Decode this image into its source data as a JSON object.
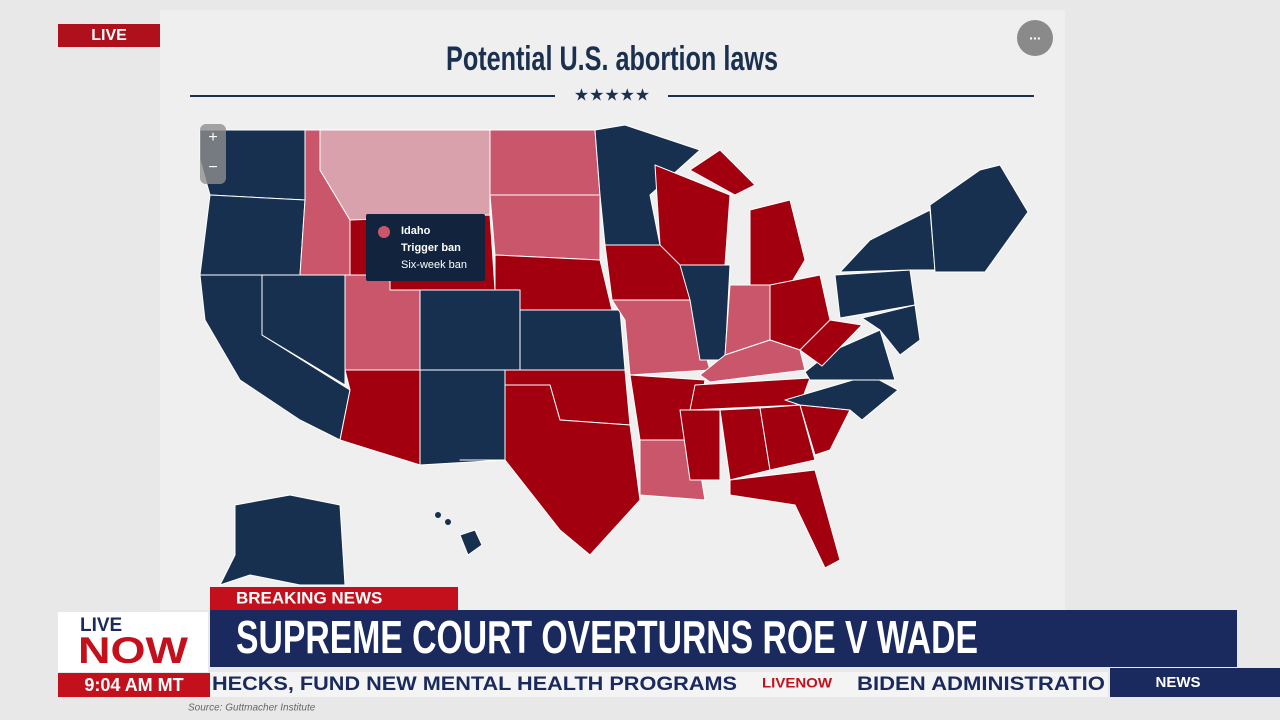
{
  "live_badge": "LIVE",
  "map": {
    "title": "Potential U.S. abortion laws",
    "stars": "★★★★★",
    "more": "...",
    "zoom_in": "+",
    "zoom_out": "−",
    "tooltip": {
      "state": "Idaho",
      "line1": "Trigger ban",
      "line2": "Six-week ban"
    }
  },
  "lower_third": {
    "breaking": "BREAKING NEWS",
    "headline": "SUPREME COURT OVERTURNS ROE V WADE",
    "logo_live": "LIVE",
    "logo_now": "NOW",
    "time": "9:04 AM MT",
    "ticker_left": "HECKS, FUND NEW MENTAL HEALTH PROGRAMS",
    "ticker_logo": "LIVENOW",
    "ticker_right": "BIDEN ADMINISTRATIO",
    "news_tag": "NEWS",
    "source": "Source: Guttmacher Institute"
  }
}
